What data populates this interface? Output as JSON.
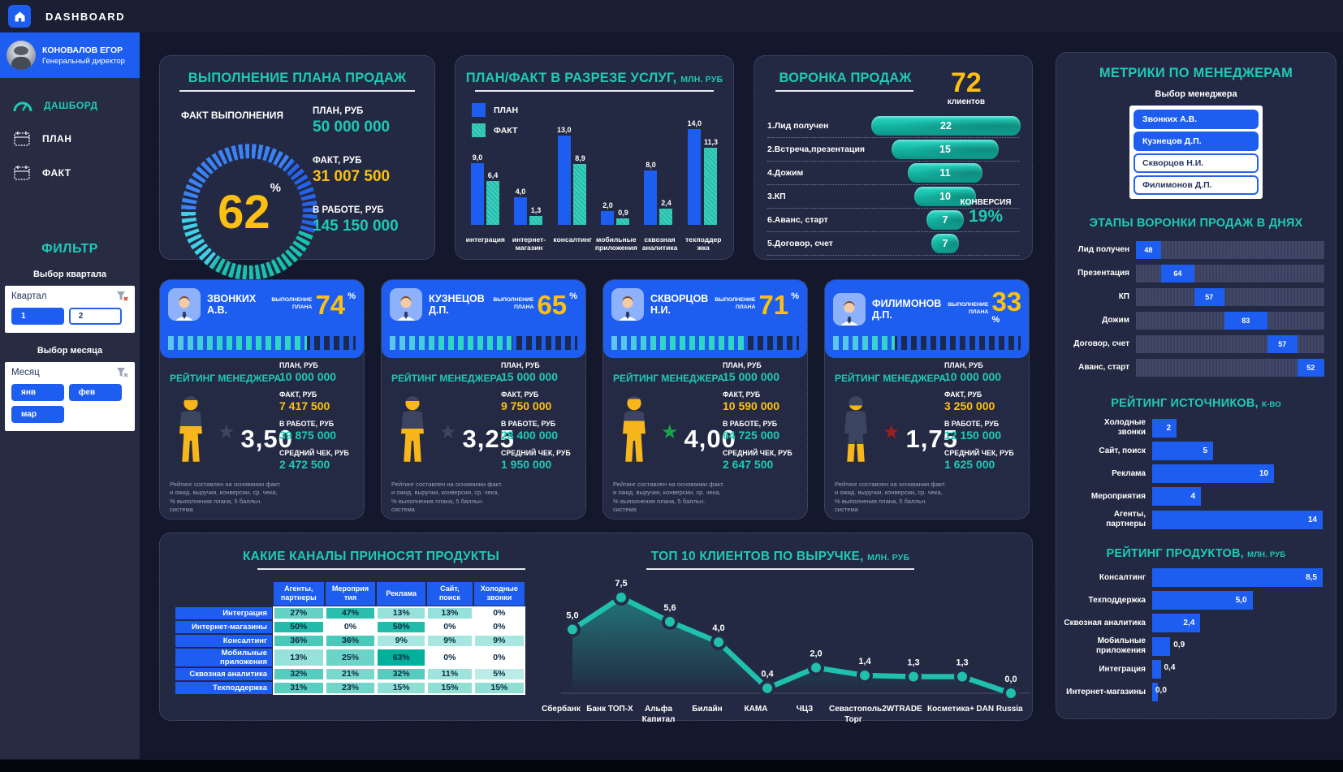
{
  "topbar": {
    "title": "DASHBOARD"
  },
  "sidebar": {
    "user": {
      "name": "КОНОВАЛОВ ЕГОР",
      "role": "Генеральный директор"
    },
    "menu": [
      {
        "label": "ДАШБОРД",
        "icon": "gauge-icon",
        "active": true
      },
      {
        "label": "ПЛАН",
        "icon": "calendar-icon",
        "active": false
      },
      {
        "label": "ФАКТ",
        "icon": "calendar-icon",
        "active": false
      }
    ],
    "filter": {
      "title": "ФИЛЬТР",
      "quarter": {
        "heading": "Выбор квартала",
        "label": "Квартал",
        "options": [
          {
            "label": "1",
            "selected": true
          },
          {
            "label": "2",
            "selected": false
          }
        ]
      },
      "month": {
        "heading": "Выбор месяца",
        "label": "Месяц",
        "options": [
          {
            "label": "янв",
            "selected": true
          },
          {
            "label": "фев",
            "selected": true
          },
          {
            "label": "мар",
            "selected": true
          }
        ]
      }
    }
  },
  "plan_panel": {
    "title": "ВЫПОЛНЕНИЕ ПЛАНА ПРОДАЖ",
    "fact_label": "ФАКТ ВЫПОЛНЕНИЯ",
    "percent": "62",
    "percent_unit": "%",
    "kpis": [
      {
        "label": "ПЛАН, РУБ",
        "value": "50 000 000",
        "color": "teal"
      },
      {
        "label": "ФАКТ, РУБ",
        "value": "31 007 500",
        "color": "yellow"
      },
      {
        "label": "В РАБОТЕ, РУБ",
        "value": "145 150 000",
        "color": "teal"
      }
    ]
  },
  "plan_fact_panel": {
    "title": "ПЛАН/ФАКТ В РАЗРЕЗЕ УСЛУГ,",
    "title_suffix": "МЛН. РУБ"
  },
  "funnel_panel": {
    "title": "ВОРОНКА ПРОДАЖ",
    "total": "72",
    "total_label": "клиентов",
    "conversion_label": "КОНВЕРСИЯ",
    "conversion_value": "19%"
  },
  "metrics_panel": {
    "title": "МЕТРИКИ ПО МЕНЕДЖЕРАМ",
    "subtitle": "Выбор менеджера",
    "manager_options": [
      {
        "label": "Звонких А.В.",
        "selected": true
      },
      {
        "label": "Кузнецов Д.П.",
        "selected": true
      },
      {
        "label": "Скворцов Н.И.",
        "selected": false
      },
      {
        "label": "Филимонов Д.П.",
        "selected": false
      }
    ],
    "days_title": "ЭТАПЫ ВОРОНКИ ПРОДАЖ В ДНЯХ",
    "sources_title": "РЕЙТИНГ ИСТОЧНИКОВ,",
    "sources_suffix": "К-ВО",
    "products_title": "РЕЙТИНГ ПРОДУКТОВ,",
    "products_suffix": "МЛН. РУБ"
  },
  "managers": {
    "labels": {
      "completion": "ВЫПОЛНЕНИЕ\nПЛАНА",
      "percent_unit": "%",
      "rating_title": "РЕЙТИНГ МЕНЕДЖЕРА",
      "plan": "ПЛАН, РУБ",
      "fact": "ФАКТ, РУБ",
      "in_work": "В РАБОТЕ, РУБ",
      "avg_check": "СРЕДНИЙ ЧЕК, РУБ",
      "footnote": "Рейтинг составлен на основании факт. и ожид. выручки, конверсии, ср. чека, % выполнения плана, 5 балльн. система"
    },
    "cards": [
      {
        "name": "ЗВОНКИХ А.В.",
        "completion": 74,
        "rating": 3.5,
        "rating_display": "3,50",
        "star_color": "#3b4662",
        "plan": "10 000 000",
        "fact": "7 417 500",
        "in_work": "39 875 000",
        "avg_check": "2 472 500"
      },
      {
        "name": "КУЗНЕЦОВ Д.П.",
        "completion": 65,
        "rating": 3.25,
        "rating_display": "3,25",
        "star_color": "#3b4662",
        "plan": "15 000 000",
        "fact": "9 750 000",
        "in_work": "28 400 000",
        "avg_check": "1 950 000"
      },
      {
        "name": "СКВОРЦОВ Н.И.",
        "completion": 71,
        "rating": 4.0,
        "rating_display": "4,00",
        "star_color": "#17a34a",
        "plan": "15 000 000",
        "fact": "10 590 000",
        "in_work": "64 725 000",
        "avg_check": "2 647 500"
      },
      {
        "name": "ФИЛИМОНОВ Д.П.",
        "completion": 33,
        "rating": 1.75,
        "rating_display": "1,75",
        "star_color": "#9f1d1d",
        "plan": "10 000 000",
        "fact": "3 250 000",
        "in_work": "12 150 000",
        "avg_check": "1 625 000"
      }
    ]
  },
  "channels_panel": {
    "title": "КАКИЕ КАНАЛЫ ПРИНОСЯТ ПРОДУКТЫ"
  },
  "clients_panel": {
    "title": "ТОП 10 КЛИЕНТОВ ПО ВЫРУЧКЕ,",
    "title_suffix": "МЛН. РУБ"
  },
  "chart_data": [
    {
      "id": "plan_fact",
      "type": "bar",
      "title": "ПЛАН/ФАКТ В РАЗРЕЗЕ УСЛУГ, МЛН. РУБ",
      "categories": [
        "интеграция",
        "интернет-\nмагазин",
        "консалтинг",
        "мобильные\nприложения",
        "сквозная\nаналитика",
        "техподдер\nжка"
      ],
      "series": [
        {
          "name": "ПЛАН",
          "values": [
            9.0,
            4.0,
            13.0,
            2.0,
            8.0,
            14.0
          ],
          "labels": [
            "9,0",
            "4,0",
            "13,0",
            "2,0",
            "8,0",
            "14,0"
          ],
          "color": "#1d5ef0"
        },
        {
          "name": "ФАКТ",
          "values": [
            6.4,
            1.3,
            8.9,
            0.9,
            2.4,
            11.3
          ],
          "labels": [
            "6,4",
            "1,3",
            "8,9",
            "0,9",
            "2,4",
            "11,3"
          ],
          "color": "#1fc0ad"
        }
      ],
      "ylim": [
        0,
        14
      ],
      "grid": false,
      "legend_position": "top-left"
    },
    {
      "id": "funnel",
      "type": "funnel",
      "title": "ВОРОНКА ПРОДАЖ",
      "total": 72,
      "total_label": "клиентов",
      "conversion": "19%",
      "stages": [
        {
          "label": "1.Лид получен",
          "value": 22
        },
        {
          "label": "2.Встреча,презентация",
          "value": 15
        },
        {
          "label": "4.Дожим",
          "value": 11
        },
        {
          "label": "3.КП",
          "value": 10
        },
        {
          "label": "6.Аванс, старт",
          "value": 7
        },
        {
          "label": "5.Договор, счет",
          "value": 7
        }
      ]
    },
    {
      "id": "stages_days",
      "type": "bar",
      "orientation": "horizontal-cascade",
      "title": "ЭТАПЫ ВОРОНКИ ПРОДАЖ В ДНЯХ",
      "categories": [
        "Лид получен",
        "Презентация",
        "КП",
        "Дожим",
        "Договор, счет",
        "Аванс, старт"
      ],
      "values": [
        48,
        64,
        57,
        83,
        57,
        52
      ]
    },
    {
      "id": "sources",
      "type": "bar",
      "orientation": "horizontal",
      "title": "РЕЙТИНГ ИСТОЧНИКОВ, К-ВО",
      "categories": [
        "Холодные\nзвонки",
        "Сайт, поиск",
        "Реклама",
        "Мероприятия",
        "Агенты,\nпартнеры"
      ],
      "values": [
        2,
        5,
        10,
        4,
        14
      ],
      "xlim": [
        0,
        14
      ]
    },
    {
      "id": "products",
      "type": "bar",
      "orientation": "horizontal",
      "title": "РЕЙТИНГ ПРОДУКТОВ, МЛН. РУБ",
      "categories": [
        "Консалтинг",
        "Техподдержка",
        "Сквозная аналитика",
        "Мобильные\nприложения",
        "Интеграция",
        "Интернет-магазины"
      ],
      "values": [
        8.5,
        5.0,
        2.4,
        0.9,
        0.4,
        0.0
      ],
      "labels": [
        "8,5",
        "5,0",
        "2,4",
        "0,9",
        "0,4",
        "0,0"
      ],
      "xlim": [
        0,
        8.5
      ]
    },
    {
      "id": "channels",
      "type": "heatmap",
      "title": "КАКИЕ КАНАЛЫ ПРИНОСЯТ ПРОДУКТЫ",
      "columns": [
        "Агенты,\nпартнеры",
        "Мероприя\nтия",
        "Реклама",
        "Сайт,\nпоиск",
        "Холодные\nзвонки"
      ],
      "rows": [
        {
          "label": "Интеграция",
          "values_pct": [
            27,
            47,
            13,
            13,
            0
          ]
        },
        {
          "label": "Интернет-магазины",
          "values_pct": [
            50,
            0,
            50,
            0,
            0
          ]
        },
        {
          "label": "Консалтинг",
          "values_pct": [
            36,
            36,
            9,
            9,
            9
          ]
        },
        {
          "label": "Мобильные приложения",
          "values_pct": [
            13,
            25,
            63,
            0,
            0
          ]
        },
        {
          "label": "Сквозная аналитика",
          "values_pct": [
            32,
            21,
            32,
            11,
            5
          ]
        },
        {
          "label": "Техподдержка",
          "values_pct": [
            31,
            23,
            15,
            15,
            15
          ]
        }
      ]
    },
    {
      "id": "top_clients",
      "type": "line",
      "title": "ТОП 10 КЛИЕНТОВ ПО ВЫРУЧКЕ, МЛН. РУБ",
      "categories": [
        "Сбербанк",
        "Банк ТОП-Х",
        "Альфа\nКапитал",
        "Билайн",
        "КАМА",
        "ЧЦЗ",
        "Севастополь\nТорг",
        "2WTRADE",
        "Косметика+",
        "DAN Russia"
      ],
      "values": [
        5.0,
        7.5,
        5.6,
        4.0,
        0.4,
        2.0,
        1.4,
        1.3,
        1.3,
        0.0
      ],
      "labels": [
        "5,0",
        "7,5",
        "5,6",
        "4,0",
        "0,4",
        "2,0",
        "1,4",
        "1,3",
        "1,3",
        "0,0"
      ],
      "ylim": [
        0,
        7.5
      ],
      "line_color": "#1fc0ad",
      "area": true
    }
  ]
}
